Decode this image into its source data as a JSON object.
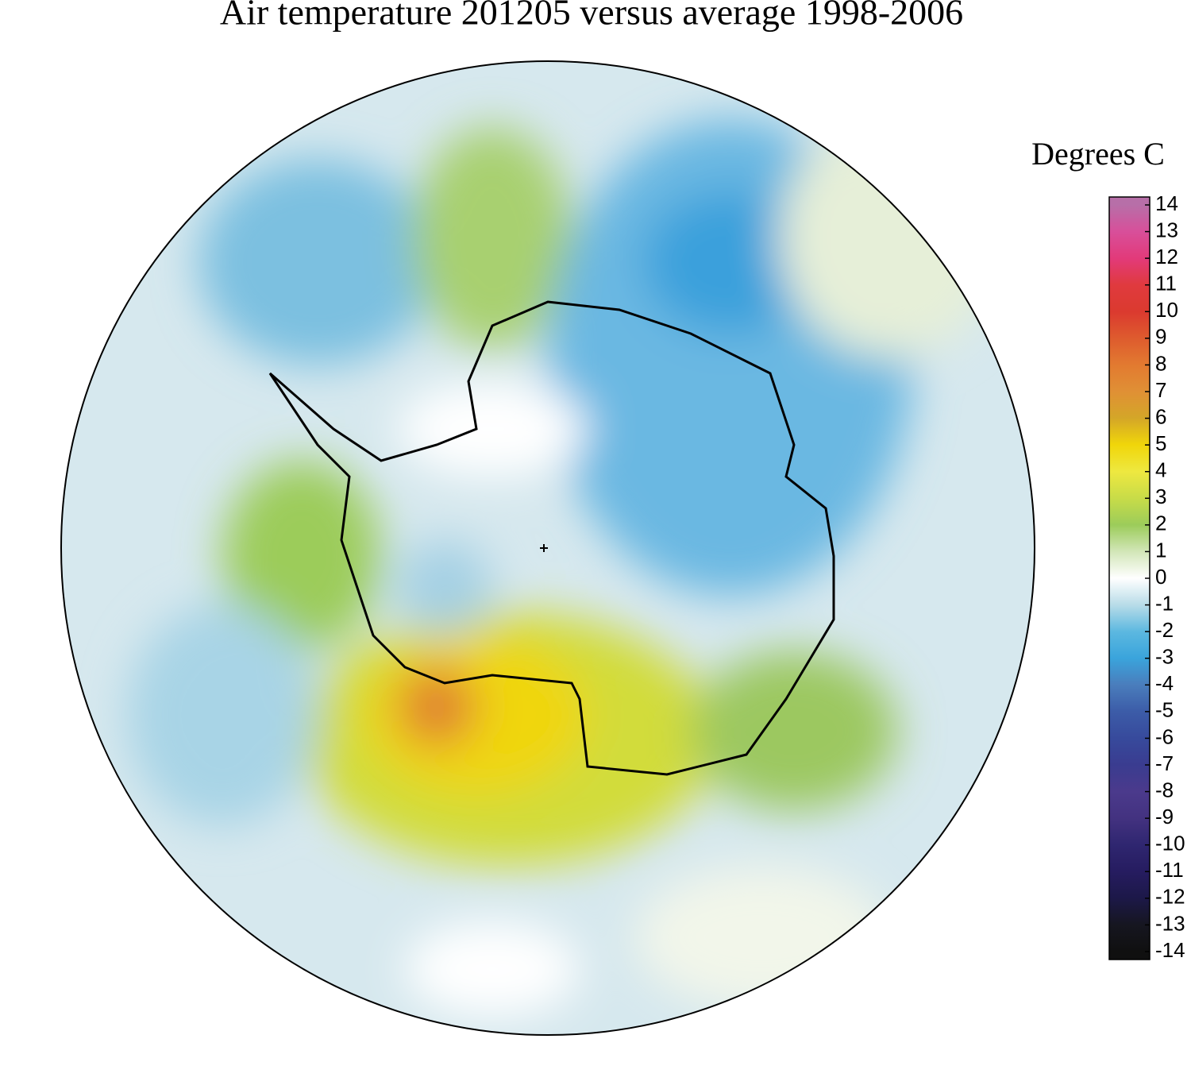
{
  "title": "Air temperature 201205 versus average 1998-2006",
  "colorbar": {
    "label": "Degrees C",
    "lim": [
      -14,
      14
    ],
    "ticks": [
      14,
      13,
      12,
      11,
      10,
      9,
      8,
      7,
      6,
      5,
      4,
      3,
      2,
      1,
      0,
      -1,
      -2,
      -3,
      -4,
      -5,
      -6,
      -7,
      -8,
      -9,
      -10,
      -11,
      -12,
      -13,
      -14
    ],
    "colors": [
      "#b76fa8",
      "#d84f9a",
      "#e23a7a",
      "#e03a3e",
      "#db3a2f",
      "#de5b2e",
      "#e27a30",
      "#e09035",
      "#d4a628",
      "#f0d60a",
      "#eee840",
      "#c8dc48",
      "#9ccc5a",
      "#d2e6b8",
      "#ffffff",
      "#b8dce8",
      "#5cb8e0",
      "#3aa4dc",
      "#4a7dbc",
      "#3c5ca8",
      "#374a9c",
      "#3a3c90",
      "#4b3a8c",
      "#433280",
      "#2f2670",
      "#261c60",
      "#1c1848",
      "#161620",
      "#101010"
    ]
  }
}
